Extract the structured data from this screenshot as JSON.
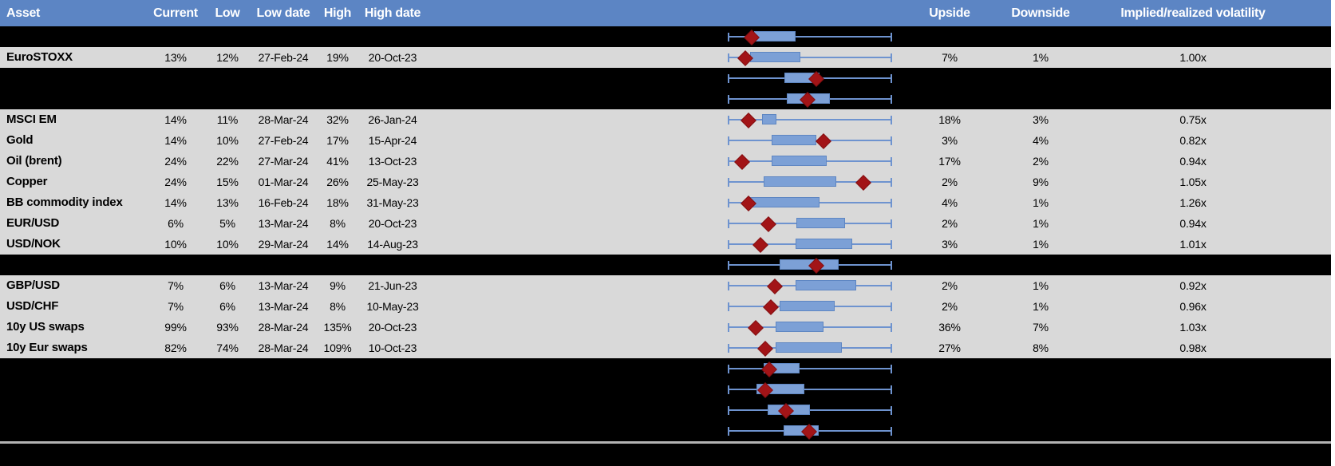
{
  "colors": {
    "page_bg": "#FFFFFF",
    "header_bg": "#5C85C4",
    "header_text": "#FFFFFF",
    "row_bg": "#D9D9D9",
    "spacer_bg": "#000000",
    "body_text": "#000000",
    "whisker": "#6E93CF",
    "box_fill": "#7CA0D6",
    "box_border": "#5E86C2",
    "marker": "#A21417",
    "marker_border": "#821011",
    "separator": "#B3B3B3"
  },
  "header": {
    "columns": [
      "Asset",
      "Current",
      "Low",
      "Low date",
      "High",
      "High date",
      "Upside",
      "Downside",
      "Implied/realized volatility"
    ]
  },
  "chart_data": {
    "type": "table",
    "columns": [
      "Asset",
      "Current",
      "Low",
      "Low date",
      "High",
      "High date",
      "Upside",
      "Downside",
      "Implied/realized volatility"
    ],
    "boxplot_layout": "each row shows a horizontal min-max whisker spanning the full cell, a blue interquartile box and a dark-red diamond marking the current level; box_start/box_end/marker are fractions 0-1 of the whisker span",
    "rows": [
      {
        "type": "spacer",
        "boxplot": {
          "box_start": 0.161,
          "box_end": 0.415,
          "marker": 0.141
        }
      },
      {
        "type": "data",
        "cells": {
          "asset": "EuroSTOXX",
          "current": "13%",
          "low": "12%",
          "low_date": "27-Feb-24",
          "high": "19%",
          "high_date": "20-Oct-23",
          "upside": "7%",
          "downside": "1%",
          "vol": "1.00x"
        },
        "boxplot": {
          "box_start": 0.137,
          "box_end": 0.444,
          "marker": 0.102
        }
      },
      {
        "type": "spacer",
        "boxplot": {
          "box_start": 0.346,
          "box_end": 0.561,
          "marker": 0.537
        }
      },
      {
        "type": "spacer",
        "boxplot": {
          "box_start": 0.361,
          "box_end": 0.624,
          "marker": 0.483
        }
      },
      {
        "type": "data",
        "cells": {
          "asset": "MSCI EM",
          "current": "14%",
          "low": "11%",
          "low_date": "28-Mar-24",
          "high": "32%",
          "high_date": "26-Jan-24",
          "upside": "18%",
          "downside": "3%",
          "vol": "0.75x"
        },
        "boxplot": {
          "box_start": 0.21,
          "box_end": 0.298,
          "marker": 0.122
        }
      },
      {
        "type": "data",
        "cells": {
          "asset": "Gold",
          "current": "14%",
          "low": "10%",
          "low_date": "27-Feb-24",
          "high": "17%",
          "high_date": "15-Apr-24",
          "upside": "3%",
          "downside": "4%",
          "vol": "0.82x"
        },
        "boxplot": {
          "box_start": 0.268,
          "box_end": 0.541,
          "marker": 0.58
        }
      },
      {
        "type": "data",
        "cells": {
          "asset": "Oil (brent)",
          "current": "24%",
          "low": "22%",
          "low_date": "27-Mar-24",
          "high": "41%",
          "high_date": "13-Oct-23",
          "upside": "17%",
          "downside": "2%",
          "vol": "0.94x"
        },
        "boxplot": {
          "box_start": 0.268,
          "box_end": 0.605,
          "marker": 0.083
        }
      },
      {
        "type": "data",
        "cells": {
          "asset": "Copper",
          "current": "24%",
          "low": "15%",
          "low_date": "01-Mar-24",
          "high": "26%",
          "high_date": "25-May-23",
          "upside": "2%",
          "downside": "9%",
          "vol": "1.05x"
        },
        "boxplot": {
          "box_start": 0.22,
          "box_end": 0.663,
          "marker": 0.824
        }
      },
      {
        "type": "data",
        "cells": {
          "asset": "BB commodity index",
          "current": "14%",
          "low": "13%",
          "low_date": "16-Feb-24",
          "high": "18%",
          "high_date": "31-May-23",
          "upside": "4%",
          "downside": "1%",
          "vol": "1.26x"
        },
        "boxplot": {
          "box_start": 0.132,
          "box_end": 0.561,
          "marker": 0.122
        }
      },
      {
        "type": "data",
        "cells": {
          "asset": "EUR/USD",
          "current": "6%",
          "low": "5%",
          "low_date": "13-Mar-24",
          "high": "8%",
          "high_date": "20-Oct-23",
          "upside": "2%",
          "downside": "1%",
          "vol": "0.94x"
        },
        "boxplot": {
          "box_start": 0.42,
          "box_end": 0.717,
          "marker": 0.244
        }
      },
      {
        "type": "data",
        "cells": {
          "asset": "USD/NOK",
          "current": "10%",
          "low": "10%",
          "low_date": "29-Mar-24",
          "high": "14%",
          "high_date": "14-Aug-23",
          "upside": "3%",
          "downside": "1%",
          "vol": "1.01x"
        },
        "boxplot": {
          "box_start": 0.415,
          "box_end": 0.761,
          "marker": 0.195
        }
      },
      {
        "type": "spacer",
        "boxplot": {
          "box_start": 0.317,
          "box_end": 0.678,
          "marker": 0.537
        }
      },
      {
        "type": "data",
        "cells": {
          "asset": "GBP/USD",
          "current": "7%",
          "low": "6%",
          "low_date": "13-Mar-24",
          "high": "9%",
          "high_date": "21-Jun-23",
          "upside": "2%",
          "downside": "1%",
          "vol": "0.92x"
        },
        "boxplot": {
          "box_start": 0.415,
          "box_end": 0.785,
          "marker": 0.283
        }
      },
      {
        "type": "data",
        "cells": {
          "asset": "USD/CHF",
          "current": "7%",
          "low": "6%",
          "low_date": "13-Mar-24",
          "high": "8%",
          "high_date": "10-May-23",
          "upside": "2%",
          "downside": "1%",
          "vol": "0.96x"
        },
        "boxplot": {
          "box_start": 0.317,
          "box_end": 0.654,
          "marker": 0.259
        }
      },
      {
        "type": "data",
        "cells": {
          "asset": "10y US swaps",
          "current": "99%",
          "low": "93%",
          "low_date": "28-Mar-24",
          "high": "135%",
          "high_date": "20-Oct-23",
          "upside": "36%",
          "downside": "7%",
          "vol": "1.03x"
        },
        "boxplot": {
          "box_start": 0.293,
          "box_end": 0.585,
          "marker": 0.166
        }
      },
      {
        "type": "data",
        "cells": {
          "asset": "10y Eur swaps",
          "current": "82%",
          "low": "74%",
          "low_date": "28-Mar-24",
          "high": "109%",
          "high_date": "10-Oct-23",
          "upside": "27%",
          "downside": "8%",
          "vol": "0.98x"
        },
        "boxplot": {
          "box_start": 0.293,
          "box_end": 0.698,
          "marker": 0.224
        }
      },
      {
        "type": "spacer",
        "boxplot": {
          "box_start": 0.22,
          "box_end": 0.439,
          "marker": 0.249
        }
      },
      {
        "type": "spacer",
        "boxplot": {
          "box_start": 0.176,
          "box_end": 0.468,
          "marker": 0.224
        }
      },
      {
        "type": "spacer",
        "boxplot": {
          "box_start": 0.244,
          "box_end": 0.502,
          "marker": 0.351
        }
      },
      {
        "type": "spacer",
        "boxplot": {
          "box_start": 0.341,
          "box_end": 0.556,
          "marker": 0.493
        }
      },
      {
        "type": "separator"
      },
      {
        "type": "spacer_tall"
      }
    ]
  }
}
